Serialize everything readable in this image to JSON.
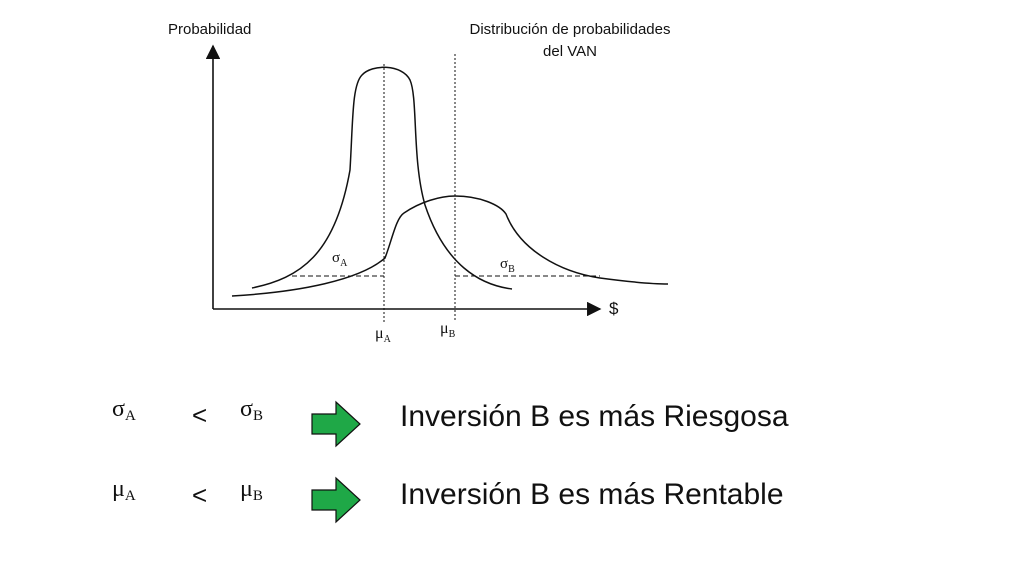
{
  "diagram": {
    "y_axis_label": "Probabilidad",
    "title_line1": "Distribución de probabilidades",
    "title_line2": "del VAN",
    "x_axis_label": "$",
    "sigma_a": "σ",
    "sigma_a_sub": "A",
    "sigma_b": "σ",
    "sigma_b_sub": "B",
    "mu_a": "μ",
    "mu_a_sub": "A",
    "mu_b": "μ",
    "mu_b_sub": "B"
  },
  "comparisons": [
    {
      "left_symbol": "σ",
      "left_sub": "A",
      "operator": "<",
      "right_symbol": "σ",
      "right_sub": "B",
      "arrow_icon": "right-arrow-icon",
      "arrow_color": "#1fa847",
      "conclusion": "Inversión B es más Riesgosa"
    },
    {
      "left_symbol": "μ",
      "left_sub": "A",
      "operator": "<",
      "right_symbol": "μ",
      "right_sub": "B",
      "arrow_icon": "right-arrow-icon",
      "arrow_color": "#1fa847",
      "conclusion": "Inversión B es más Rentable"
    }
  ]
}
